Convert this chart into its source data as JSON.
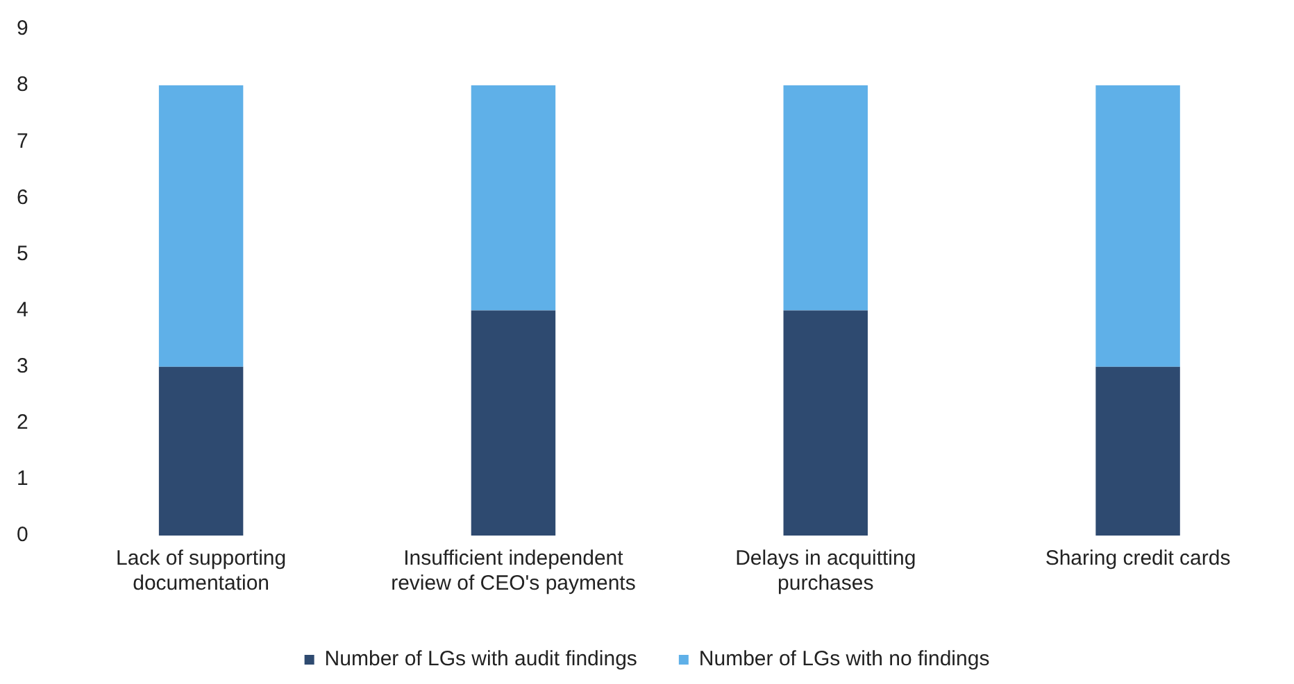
{
  "chart_data": {
    "type": "bar",
    "stacked": true,
    "categories": [
      "Lack of supporting documentation",
      "Insufficient independent review of CEO's payments",
      "Delays in acquitting purchases",
      "Sharing credit cards"
    ],
    "series": [
      {
        "name": "Number of LGs with audit findings",
        "color": "#2e4a70",
        "values": [
          3,
          4,
          4,
          3
        ]
      },
      {
        "name": "Number of LGs with no findings",
        "color": "#5fb0e8",
        "values": [
          5,
          4,
          4,
          5
        ]
      }
    ],
    "ylim": [
      0,
      9
    ],
    "yticks": [
      0,
      1,
      2,
      3,
      4,
      5,
      6,
      7,
      8,
      9
    ],
    "grid": false,
    "legend": "bottom"
  }
}
